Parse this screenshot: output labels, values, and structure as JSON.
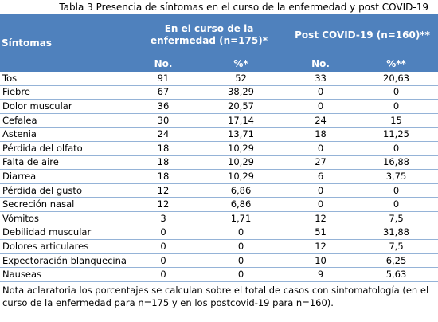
{
  "title": "Tabla 3 Presencia de síntomas en el curso de la enfermedad y post COVID-19",
  "table": {
    "header": {
      "col0": "Síntomas",
      "group1": "En el curso de la enfermedad (n=175)*",
      "group2": "Post COVID-19 (n=160)**",
      "sub": [
        "No.",
        "%*",
        "No.",
        "%**"
      ]
    },
    "rows": [
      [
        "Tos",
        "91",
        "52",
        "33",
        "20,63"
      ],
      [
        "Fiebre",
        "67",
        "38,29",
        "0",
        "0"
      ],
      [
        "Dolor muscular",
        "36",
        "20,57",
        "0",
        "0"
      ],
      [
        "Cefalea",
        "30",
        "17,14",
        "24",
        "15"
      ],
      [
        "Astenia",
        "24",
        "13,71",
        "18",
        "11,25"
      ],
      [
        "Pérdida del olfato",
        "18",
        "10,29",
        "0",
        "0"
      ],
      [
        "Falta de aire",
        "18",
        "10,29",
        "27",
        "16,88"
      ],
      [
        "Diarrea",
        "18",
        "10,29",
        "6",
        "3,75"
      ],
      [
        "Pérdida del gusto",
        "12",
        "6,86",
        "0",
        "0"
      ],
      [
        "Secreción nasal",
        "12",
        "6,86",
        "0",
        "0"
      ],
      [
        "Vómitos",
        "3",
        "1,71",
        "12",
        "7,5"
      ],
      [
        "Debilidad muscular",
        "0",
        "0",
        "51",
        "31,88"
      ],
      [
        "Dolores articulares",
        "0",
        "0",
        "12",
        "7,5"
      ],
      [
        "Expectoración blanquecina",
        "0",
        "0",
        "10",
        "6,25"
      ],
      [
        "Nauseas",
        "0",
        "0",
        "9",
        "5,63"
      ]
    ]
  },
  "note": "Nota aclaratoria los porcentajes se calculan sobre el total de casos con sintomatología (en el curso de la enfermedad para n=175 y en los postcovid-19 para n=160)."
}
